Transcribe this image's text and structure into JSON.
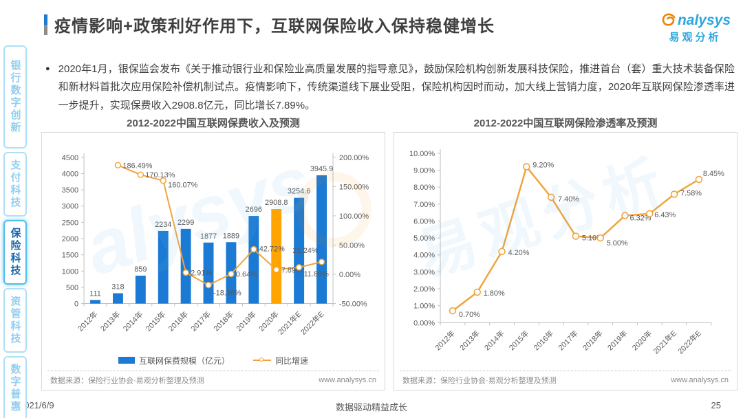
{
  "page": {
    "title": "疫情影响+政策利好作用下，互联网保险收入保持稳健增长",
    "bullet_text": "2020年1月，银保监会发布《关于推动银行业和保险业高质量发展的指导意见》，鼓励保险机构创新发展科技保险，推进首台（套）重大技术装备保险和新材料首批次应用保险补偿机制试点。疫情影响下，传统渠道线下展业受阻，保险机构因时而动，加大线上营销力度，2020年互联网保险渗透率进一步提升，实现保费收入2908.8亿元，同比增长7.89%。",
    "logo": {
      "brand": "nalysys",
      "brand_cn": "易观分析"
    },
    "footer": {
      "date": "2021/6/9",
      "slogan": "数据驱动精益成长",
      "page_number": "25"
    }
  },
  "sidebar": {
    "items": [
      {
        "label": "银行数字创新",
        "active": false
      },
      {
        "label": "支付科技",
        "active": false
      },
      {
        "label": "保险科技",
        "active": true
      },
      {
        "label": "资管科技",
        "active": false
      },
      {
        "label": "数字普惠",
        "active": false
      }
    ]
  },
  "colors": {
    "bar_blue": "#1B7AD3",
    "bar_highlight_orange": "#FFA400",
    "line_orange": "#F0A43C",
    "axis_gray": "#C0C0C0",
    "label_gray": "#595959",
    "brand_blue": "#2AA7DE",
    "brand_orange": "#F08300"
  },
  "chart_data": [
    {
      "type": "bar",
      "title": "2012-2022中国互联网保费收入及预测",
      "categories": [
        "2012年",
        "2013年",
        "2014年",
        "2015年",
        "2016年",
        "2017年",
        "2018年",
        "2019年",
        "2020年",
        "2021年E",
        "2022年E"
      ],
      "series": [
        {
          "name": "互联网保费规模（亿元）",
          "type": "bar",
          "values": [
            111,
            318,
            859,
            2234,
            2299,
            1877,
            1889,
            2696,
            2908.8,
            3254.6,
            3945.9
          ],
          "labels": [
            "111",
            "318",
            "859",
            "2234",
            "2299",
            "1877",
            "1889",
            "2696",
            "2908.8",
            "3254.6",
            "3945.9"
          ],
          "highlight_index": 8
        },
        {
          "name": "同比增速",
          "type": "line",
          "values": [
            null,
            186.49,
            170.13,
            160.07,
            2.91,
            -18.36,
            0.64,
            42.72,
            7.89,
            11.89,
            21.24
          ],
          "labels": [
            "",
            "186.49%",
            "170.13%",
            "160.07%",
            "2.91%",
            "-18.36%",
            "0.64%",
            "42.72%",
            "7.89%",
            "11.89%",
            "21.24%"
          ]
        }
      ],
      "y1_axis": {
        "min": 0,
        "max": 4500,
        "step": 500
      },
      "y2_axis": {
        "min": -50,
        "max": 200,
        "step": 50,
        "format": "percent2"
      },
      "grid": false,
      "legend_position": "bottom",
      "source": "数据来源：保险行业协会·易观分析整理及预测",
      "source_url": "www.analysys.cn"
    },
    {
      "type": "line",
      "title": "2012-2022中国互联网保险渗透率及预测",
      "categories": [
        "2012年",
        "2013年",
        "2014年",
        "2015年",
        "2016年",
        "2017年",
        "2018年",
        "2019年",
        "2020年",
        "2021年E",
        "2022年E"
      ],
      "values": [
        0.7,
        1.8,
        4.2,
        9.2,
        7.4,
        5.1,
        5.0,
        6.32,
        6.43,
        7.58,
        8.45
      ],
      "labels": [
        "0.70%",
        "1.80%",
        "4.20%",
        "9.20%",
        "7.40%",
        "5.10%",
        "5.00%",
        "6.32%",
        "6.43%",
        "7.58%",
        "8.45%"
      ],
      "y_axis": {
        "min": 0,
        "max": 10,
        "step": 1,
        "format": "percent2"
      },
      "grid": false,
      "legend_position": "none",
      "source": "数据来源：保险行业协会·易观分析整理及预测",
      "source_url": "www.analysys.cn"
    }
  ]
}
